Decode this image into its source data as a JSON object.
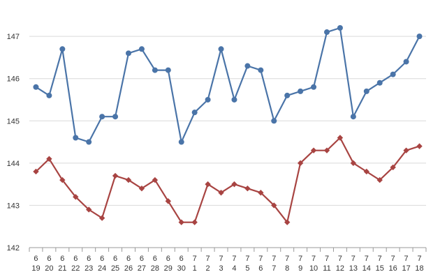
{
  "chart_data": {
    "type": "line",
    "title": "",
    "xlabel": "",
    "ylabel": "",
    "ylim": [
      142,
      147.2
    ],
    "yticks": [
      "142",
      "143",
      "144",
      "145",
      "146",
      "147"
    ],
    "ytick_values": [
      142,
      143,
      144,
      145,
      146,
      147
    ],
    "grid": true,
    "legend": "none",
    "categories": [
      [
        "6",
        "19"
      ],
      [
        "6",
        "20"
      ],
      [
        "6",
        "21"
      ],
      [
        "6",
        "22"
      ],
      [
        "6",
        "23"
      ],
      [
        "6",
        "24"
      ],
      [
        "6",
        "25"
      ],
      [
        "6",
        "26"
      ],
      [
        "6",
        "27"
      ],
      [
        "6",
        "28"
      ],
      [
        "6",
        "29"
      ],
      [
        "6",
        "30"
      ],
      [
        "7",
        "1"
      ],
      [
        "7",
        "2"
      ],
      [
        "7",
        "3"
      ],
      [
        "7",
        "4"
      ],
      [
        "7",
        "5"
      ],
      [
        "7",
        "6"
      ],
      [
        "7",
        "7"
      ],
      [
        "7",
        "8"
      ],
      [
        "7",
        "9"
      ],
      [
        "7",
        "10"
      ],
      [
        "7",
        "11"
      ],
      [
        "7",
        "12"
      ],
      [
        "7",
        "13"
      ],
      [
        "7",
        "14"
      ],
      [
        "7",
        "15"
      ],
      [
        "7",
        "16"
      ],
      [
        "7",
        "17"
      ],
      [
        "7",
        "18"
      ]
    ],
    "series": [
      {
        "color": "#4a74a8",
        "marker": "circle",
        "values": [
          145.8,
          145.6,
          146.7,
          144.6,
          144.5,
          145.1,
          145.1,
          146.6,
          146.7,
          146.2,
          146.2,
          144.5,
          145.2,
          145.5,
          146.7,
          145.5,
          146.3,
          146.2,
          145.0,
          145.6,
          145.7,
          145.8,
          147.1,
          147.2,
          145.1,
          145.7,
          145.9,
          146.1,
          146.4,
          147.0
        ]
      },
      {
        "color": "#a84442",
        "marker": "diamond",
        "values": [
          143.8,
          144.1,
          143.6,
          143.2,
          142.9,
          142.7,
          143.7,
          143.6,
          143.4,
          143.6,
          143.1,
          142.6,
          142.6,
          143.5,
          143.3,
          143.5,
          143.4,
          143.3,
          143.0,
          142.6,
          144.0,
          144.3,
          144.3,
          144.6,
          144.0,
          143.8,
          143.6,
          143.9,
          144.3,
          144.4
        ]
      }
    ]
  }
}
